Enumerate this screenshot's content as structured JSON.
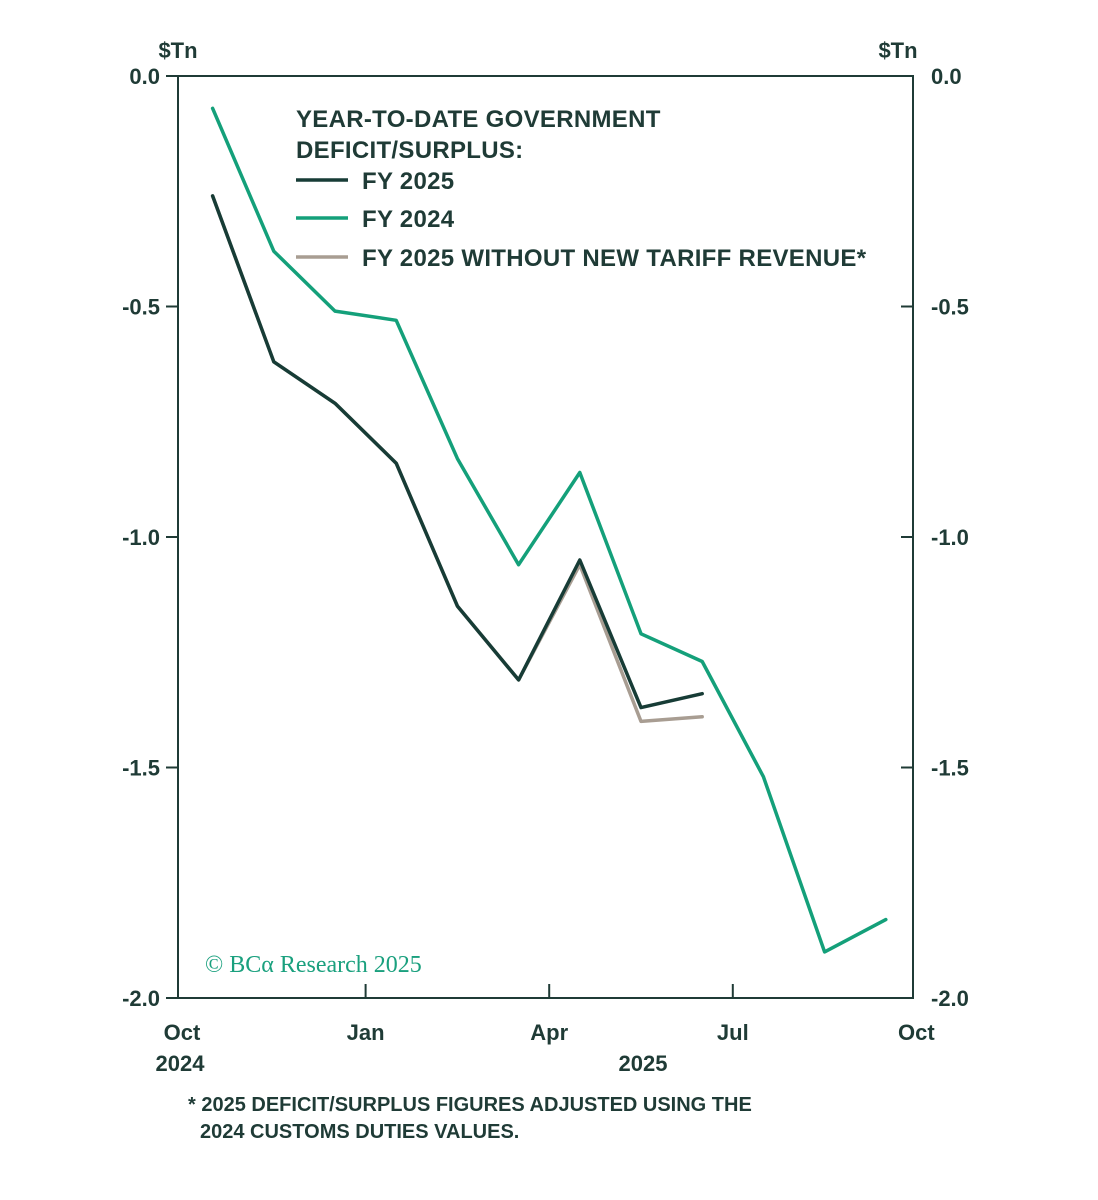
{
  "chart_data": {
    "type": "line",
    "units_left": "$Tn",
    "units_right": "$Tn",
    "ylim": [
      -2.0,
      0.0
    ],
    "yticks": [
      "0.0",
      "-0.5",
      "-1.0",
      "-1.5",
      "-2.0"
    ],
    "x_tick_labels": [
      "Oct",
      "Jan",
      "Apr",
      "Jul",
      "Oct"
    ],
    "x_year_labels": [
      "2024",
      "2025"
    ],
    "legend_title": [
      "YEAR-TO-DATE GOVERNMENT",
      "DEFICIT/SURPLUS:"
    ],
    "series": [
      {
        "name": "FY 2025",
        "color": "#173c36",
        "x": [
          "2024-10",
          "2024-11",
          "2024-12",
          "2025-01",
          "2025-02",
          "2025-03",
          "2025-04",
          "2025-05",
          "2025-06"
        ],
        "values": [
          -0.26,
          -0.62,
          -0.71,
          -0.84,
          -1.15,
          -1.31,
          -1.05,
          -1.37,
          -1.34
        ]
      },
      {
        "name": "FY 2024",
        "color": "#14a07a",
        "x": [
          "2024-10",
          "2024-11",
          "2024-12",
          "2025-01",
          "2025-02",
          "2025-03",
          "2025-04",
          "2025-05",
          "2025-06",
          "2025-07",
          "2025-08",
          "2025-09"
        ],
        "values": [
          -0.07,
          -0.38,
          -0.51,
          -0.53,
          -0.83,
          -1.06,
          -0.86,
          -1.21,
          -1.27,
          -1.52,
          -1.9,
          -1.83
        ]
      },
      {
        "name": "FY 2025 WITHOUT NEW TARIFF REVENUE*",
        "color": "#a89d92",
        "x": [
          "2024-10",
          "2024-11",
          "2024-12",
          "2025-01",
          "2025-02",
          "2025-03",
          "2025-04",
          "2025-05",
          "2025-06"
        ],
        "values": [
          -0.26,
          -0.62,
          -0.71,
          -0.84,
          -1.15,
          -1.31,
          -1.06,
          -1.4,
          -1.39
        ]
      }
    ],
    "credit": "© BCα Research 2025",
    "footnote": [
      "* 2025 DEFICIT/SURPLUS FIGURES ADJUSTED USING THE",
      "2024 CUSTOMS DUTIES VALUES."
    ]
  }
}
